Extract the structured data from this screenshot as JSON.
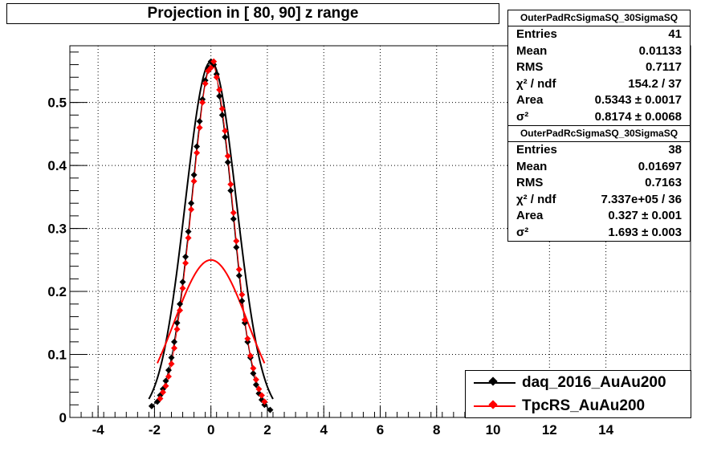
{
  "title": "Projection in [  80,  90] z range",
  "stats": [
    {
      "name": "OuterPadRcSigmaSQ_30SigmaSQ",
      "rows": [
        {
          "label": "Entries",
          "value": "41"
        },
        {
          "label": "Mean",
          "value": "0.01133"
        },
        {
          "label": "RMS",
          "value": "0.7117"
        },
        {
          "label": "χ² / ndf",
          "value": "154.2 / 37"
        },
        {
          "label": "Area",
          "value": "0.5343 ± 0.0017"
        },
        {
          "label": "σ²",
          "value": "0.8174 ± 0.0068"
        }
      ]
    },
    {
      "name": "OuterPadRcSigmaSQ_30SigmaSQ",
      "rows": [
        {
          "label": "Entries",
          "value": "38"
        },
        {
          "label": "Mean",
          "value": "0.01697"
        },
        {
          "label": "RMS",
          "value": "0.7163"
        },
        {
          "label": "χ² / ndf",
          "value": "7.337e+05 / 36"
        },
        {
          "label": "Area",
          "value": "0.327 ± 0.001"
        },
        {
          "label": "σ²",
          "value": "1.693 ± 0.003"
        }
      ]
    }
  ],
  "legend": [
    {
      "label": "daq_2016_AuAu200",
      "color": "#000000"
    },
    {
      "label": "TpcRS_AuAu200",
      "color": "#ff0000"
    }
  ],
  "chart_data": {
    "type": "scatter",
    "title": "Projection in [  80,  90] z range",
    "xlim": [
      -5,
      17
    ],
    "ylim": [
      0,
      0.59
    ],
    "x_ticks": [
      -4,
      -2,
      0,
      2,
      4,
      6,
      8,
      10,
      12,
      14
    ],
    "y_ticks": [
      0,
      0.1,
      0.2,
      0.3,
      0.4,
      0.5
    ],
    "grid": true,
    "legend_position": "bottom-right",
    "series": [
      {
        "name": "daq_2016_AuAu200",
        "color": "#000000",
        "x": [
          -2.1,
          -1.9,
          -1.8,
          -1.7,
          -1.6,
          -1.5,
          -1.4,
          -1.3,
          -1.2,
          -1.1,
          -1.0,
          -0.9,
          -0.8,
          -0.7,
          -0.6,
          -0.5,
          -0.4,
          -0.3,
          -0.2,
          -0.1,
          0.0,
          0.1,
          0.2,
          0.3,
          0.4,
          0.5,
          0.6,
          0.7,
          0.8,
          0.9,
          1.0,
          1.1,
          1.2,
          1.3,
          1.4,
          1.5,
          1.6,
          1.7,
          1.8,
          1.9,
          2.1
        ],
        "y": [
          0.018,
          0.025,
          0.035,
          0.045,
          0.058,
          0.075,
          0.095,
          0.12,
          0.15,
          0.18,
          0.215,
          0.255,
          0.295,
          0.34,
          0.385,
          0.43,
          0.47,
          0.505,
          0.535,
          0.555,
          0.565,
          0.56,
          0.545,
          0.51,
          0.48,
          0.445,
          0.405,
          0.36,
          0.315,
          0.27,
          0.225,
          0.185,
          0.15,
          0.12,
          0.095,
          0.07,
          0.052,
          0.038,
          0.028,
          0.02,
          0.012
        ],
        "fit": {
          "area": 0.5343,
          "sigma2": 0.8174
        }
      },
      {
        "name": "TpcRS_AuAu200",
        "color": "#ff0000",
        "x": [
          -1.8,
          -1.7,
          -1.6,
          -1.5,
          -1.4,
          -1.3,
          -1.2,
          -1.1,
          -1.0,
          -0.9,
          -0.8,
          -0.7,
          -0.6,
          -0.5,
          -0.4,
          -0.3,
          -0.2,
          -0.1,
          0.0,
          0.1,
          0.2,
          0.3,
          0.4,
          0.5,
          0.6,
          0.7,
          0.8,
          0.9,
          1.0,
          1.1,
          1.2,
          1.3,
          1.4,
          1.5,
          1.6,
          1.7,
          1.8,
          1.9
        ],
        "y": [
          0.03,
          0.04,
          0.05,
          0.065,
          0.085,
          0.11,
          0.14,
          0.17,
          0.205,
          0.245,
          0.285,
          0.33,
          0.375,
          0.42,
          0.46,
          0.5,
          0.53,
          0.55,
          0.555,
          0.565,
          0.54,
          0.52,
          0.49,
          0.455,
          0.415,
          0.37,
          0.325,
          0.28,
          0.235,
          0.195,
          0.155,
          0.125,
          0.098,
          0.078,
          0.06,
          0.045,
          0.035,
          0.025
        ],
        "fit": {
          "area": 0.327,
          "sigma2": 1.693
        }
      }
    ]
  }
}
